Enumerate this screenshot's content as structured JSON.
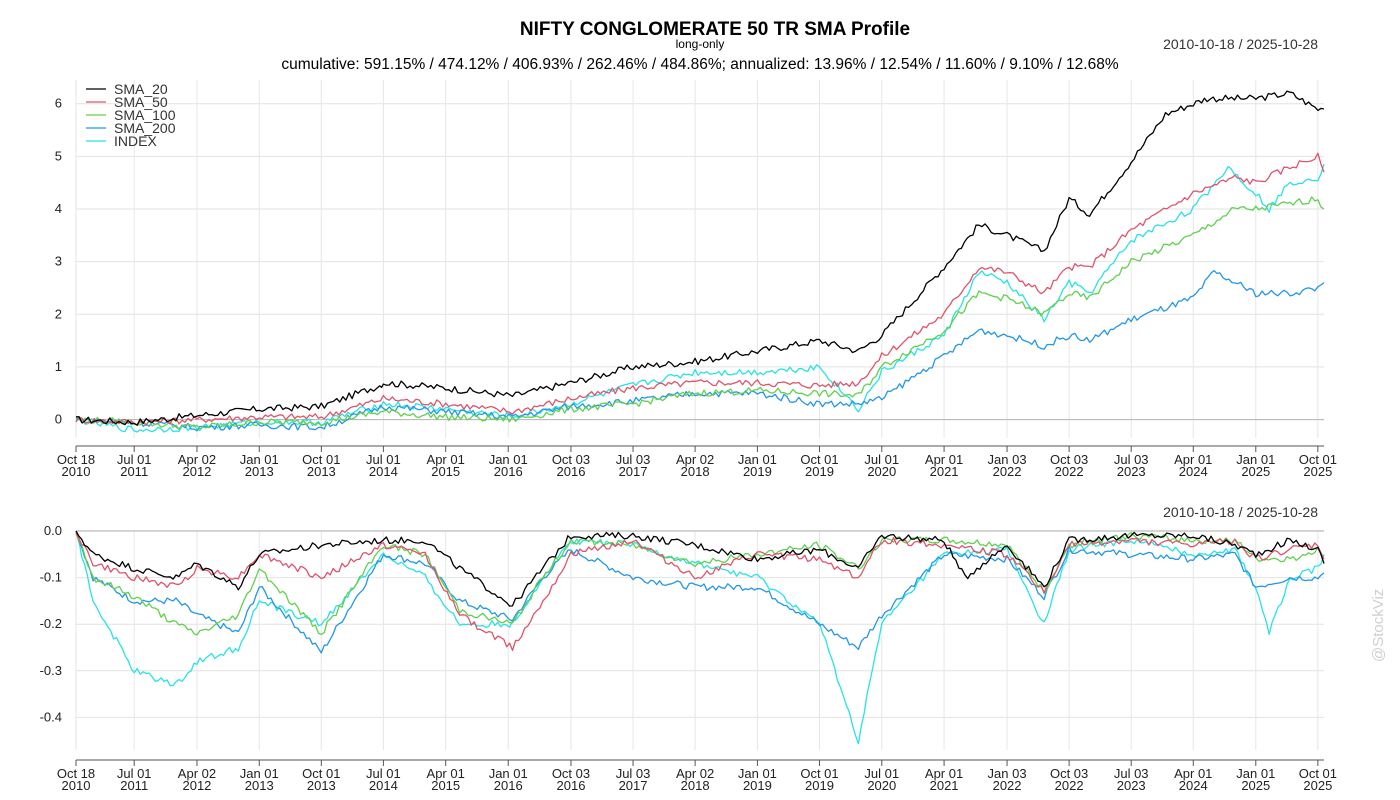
{
  "header": {
    "title": "NIFTY CONGLOMERATE 50 TR SMA Profile",
    "subtitle": "long-only",
    "stats": "cumulative: 591.15% / 474.12% / 406.93% / 262.46% / 484.86%; annualized: 13.96% / 12.54% / 11.60% / 9.10% / 12.68%",
    "date_range": "2010-10-18 / 2025-10-28"
  },
  "watermark": "@StockViz",
  "chart_data": [
    {
      "type": "line",
      "title": "NIFTY CONGLOMERATE 50 TR SMA Profile",
      "subtitle": "long-only",
      "date_range": "2010-10-18 / 2025-10-28",
      "x_ticks": [
        {
          "label": "Oct 18",
          "year": "2010",
          "date": "2010-10-18"
        },
        {
          "label": "Jul 01",
          "year": "2011",
          "date": "2011-07-01"
        },
        {
          "label": "Apr 02",
          "year": "2012",
          "date": "2012-04-02"
        },
        {
          "label": "Jan 01",
          "year": "2013",
          "date": "2013-01-01"
        },
        {
          "label": "Oct 01",
          "year": "2013",
          "date": "2013-10-01"
        },
        {
          "label": "Jul 01",
          "year": "2014",
          "date": "2014-07-01"
        },
        {
          "label": "Apr 01",
          "year": "2015",
          "date": "2015-04-01"
        },
        {
          "label": "Jan 01",
          "year": "2016",
          "date": "2016-01-01"
        },
        {
          "label": "Oct 03",
          "year": "2016",
          "date": "2016-10-03"
        },
        {
          "label": "Jul 03",
          "year": "2017",
          "date": "2017-07-03"
        },
        {
          "label": "Apr 02",
          "year": "2018",
          "date": "2018-04-02"
        },
        {
          "label": "Jan 01",
          "year": "2019",
          "date": "2019-01-01"
        },
        {
          "label": "Oct 01",
          "year": "2019",
          "date": "2019-10-01"
        },
        {
          "label": "Jul 01",
          "year": "2020",
          "date": "2020-07-01"
        },
        {
          "label": "Apr 01",
          "year": "2021",
          "date": "2021-04-01"
        },
        {
          "label": "Jan 03",
          "year": "2022",
          "date": "2022-01-03"
        },
        {
          "label": "Oct 03",
          "year": "2022",
          "date": "2022-10-03"
        },
        {
          "label": "Jul 03",
          "year": "2023",
          "date": "2023-07-03"
        },
        {
          "label": "Apr 01",
          "year": "2024",
          "date": "2024-04-01"
        },
        {
          "label": "Jan 01",
          "year": "2025",
          "date": "2025-01-01"
        },
        {
          "label": "Oct 01",
          "year": "2025",
          "date": "2025-10-01"
        }
      ],
      "y_ticks": [
        "0",
        "1",
        "2",
        "3",
        "4",
        "5",
        "6"
      ],
      "ylim": [
        -0.35,
        6.45
      ],
      "grid": true,
      "legend_position": "top-left",
      "series": [
        {
          "name": "SMA_20",
          "color": "#000000",
          "x": [
            "2010-10-18",
            "2011-07-01",
            "2012-04-02",
            "2013-01-01",
            "2013-10-01",
            "2014-06-15",
            "2014-07-01",
            "2015-04-01",
            "2016-01-20",
            "2016-10-03",
            "2017-07-03",
            "2018-04-02",
            "2019-01-01",
            "2019-10-01",
            "2020-03-20",
            "2020-07-01",
            "2021-04-01",
            "2021-09-01",
            "2022-01-03",
            "2022-06-15",
            "2022-10-03",
            "2023-01-01",
            "2023-07-03",
            "2023-12-01",
            "2024-04-01",
            "2024-06-01",
            "2025-01-01",
            "2025-06-01",
            "2025-10-01",
            "2025-10-28"
          ],
          "y": [
            0,
            -0.05,
            0.08,
            0.2,
            0.25,
            0.65,
            0.7,
            0.6,
            0.45,
            0.7,
            1.0,
            1.1,
            1.3,
            1.5,
            1.3,
            1.6,
            2.9,
            3.7,
            3.5,
            3.2,
            4.2,
            3.9,
            4.9,
            5.8,
            6.0,
            6.1,
            6.1,
            6.2,
            5.9,
            5.9
          ]
        },
        {
          "name": "SMA_50",
          "color": "#df536b",
          "x": [
            "2010-10-18",
            "2011-07-01",
            "2012-04-02",
            "2013-01-01",
            "2013-10-01",
            "2014-07-01",
            "2015-04-01",
            "2016-01-20",
            "2016-10-03",
            "2017-07-03",
            "2018-04-02",
            "2019-01-01",
            "2019-10-01",
            "2020-03-20",
            "2020-07-01",
            "2021-04-01",
            "2021-09-01",
            "2022-01-03",
            "2022-06-15",
            "2022-10-03",
            "2023-01-01",
            "2023-07-03",
            "2024-04-01",
            "2024-10-01",
            "2025-01-01",
            "2025-06-01",
            "2025-10-01",
            "2025-10-28"
          ],
          "y": [
            0,
            -0.05,
            0,
            0.05,
            0.05,
            0.4,
            0.3,
            0.15,
            0.4,
            0.6,
            0.7,
            0.7,
            0.65,
            0.7,
            1.2,
            2.0,
            2.9,
            2.8,
            2.4,
            2.9,
            2.9,
            3.6,
            4.3,
            4.6,
            4.5,
            4.8,
            5.0,
            4.7
          ]
        },
        {
          "name": "SMA_100",
          "color": "#61d04f",
          "x": [
            "2010-10-18",
            "2011-07-01",
            "2012-04-02",
            "2013-01-01",
            "2013-10-01",
            "2014-07-01",
            "2015-04-01",
            "2016-01-20",
            "2016-10-03",
            "2017-07-03",
            "2018-04-02",
            "2019-01-01",
            "2019-10-01",
            "2020-03-20",
            "2020-07-01",
            "2021-04-01",
            "2021-09-01",
            "2022-01-03",
            "2022-06-15",
            "2022-10-03",
            "2023-01-01",
            "2023-07-03",
            "2024-04-01",
            "2024-10-01",
            "2025-01-01",
            "2025-06-01",
            "2025-10-01",
            "2025-10-28"
          ],
          "y": [
            0,
            -0.05,
            -0.15,
            -0.05,
            -0.05,
            0.15,
            0.05,
            0.0,
            0.2,
            0.3,
            0.5,
            0.55,
            0.5,
            0.45,
            1.0,
            1.7,
            2.4,
            2.3,
            2.0,
            2.4,
            2.3,
            3.0,
            3.5,
            4.0,
            4.0,
            4.1,
            4.2,
            4.0
          ]
        },
        {
          "name": "SMA_200",
          "color": "#2297e6",
          "x": [
            "2010-10-18",
            "2011-07-01",
            "2012-04-02",
            "2013-01-01",
            "2013-10-01",
            "2014-07-01",
            "2015-04-01",
            "2016-01-20",
            "2016-10-03",
            "2017-07-03",
            "2018-04-02",
            "2019-01-01",
            "2019-10-01",
            "2020-03-20",
            "2020-07-01",
            "2021-04-01",
            "2021-09-01",
            "2022-01-03",
            "2022-06-15",
            "2022-10-03",
            "2023-01-01",
            "2023-07-03",
            "2024-04-01",
            "2024-07-01",
            "2025-01-01",
            "2025-06-01",
            "2025-10-01",
            "2025-10-28"
          ],
          "y": [
            0,
            -0.05,
            -0.15,
            -0.1,
            -0.15,
            0.25,
            0.15,
            0.05,
            0.25,
            0.35,
            0.5,
            0.5,
            0.3,
            0.3,
            0.4,
            1.2,
            1.7,
            1.6,
            1.4,
            1.6,
            1.5,
            1.9,
            2.3,
            2.8,
            2.4,
            2.4,
            2.5,
            2.6
          ]
        },
        {
          "name": "INDEX",
          "color": "#28e2e5",
          "x": [
            "2010-10-18",
            "2011-07-01",
            "2012-04-02",
            "2013-01-01",
            "2013-10-01",
            "2014-07-01",
            "2015-04-01",
            "2016-01-20",
            "2016-10-03",
            "2017-07-03",
            "2018-04-02",
            "2019-01-01",
            "2019-10-01",
            "2020-03-20",
            "2020-07-01",
            "2021-04-01",
            "2021-09-01",
            "2022-01-03",
            "2022-06-15",
            "2022-10-03",
            "2023-01-01",
            "2023-07-03",
            "2024-04-01",
            "2024-09-01",
            "2025-01-01",
            "2025-03-01",
            "2025-06-01",
            "2025-10-01",
            "2025-10-28"
          ],
          "y": [
            0,
            -0.2,
            -0.15,
            -0.05,
            -0.05,
            0.3,
            0.2,
            0.05,
            0.3,
            0.65,
            0.9,
            0.9,
            1.0,
            0.2,
            0.9,
            1.6,
            2.8,
            2.6,
            1.9,
            2.6,
            2.4,
            3.4,
            4.0,
            4.8,
            4.3,
            4.0,
            4.5,
            4.6,
            4.85
          ]
        }
      ]
    },
    {
      "type": "line",
      "title": "",
      "date_range": "2010-10-18 / 2025-10-28",
      "y_ticks": [
        "0.0",
        "-0.1",
        "-0.2",
        "-0.3",
        "-0.4"
      ],
      "ylim": [
        -0.47,
        0.0
      ],
      "grid": true,
      "series": [
        {
          "name": "SMA_20",
          "color": "#000000",
          "x": [
            "2010-10-18",
            "2011-01-01",
            "2011-07-01",
            "2012-01-01",
            "2012-04-02",
            "2012-10-01",
            "2013-01-01",
            "2013-10-01",
            "2014-07-01",
            "2015-01-01",
            "2015-06-01",
            "2016-01-20",
            "2016-06-01",
            "2016-10-03",
            "2017-07-03",
            "2018-04-02",
            "2019-01-01",
            "2019-10-01",
            "2020-03-20",
            "2020-07-01",
            "2021-04-01",
            "2021-07-01",
            "2022-01-03",
            "2022-06-15",
            "2022-10-03",
            "2023-07-03",
            "2024-04-01",
            "2024-10-01",
            "2025-01-01",
            "2025-06-01",
            "2025-10-01",
            "2025-10-28"
          ],
          "y": [
            0,
            -0.05,
            -0.08,
            -0.1,
            -0.07,
            -0.12,
            -0.05,
            -0.03,
            -0.02,
            -0.02,
            -0.08,
            -0.16,
            -0.08,
            -0.01,
            -0.01,
            -0.03,
            -0.06,
            -0.04,
            -0.08,
            -0.01,
            -0.02,
            -0.1,
            -0.03,
            -0.12,
            -0.02,
            -0.01,
            -0.01,
            -0.03,
            -0.05,
            -0.02,
            -0.04,
            -0.07
          ]
        },
        {
          "name": "SMA_50",
          "color": "#df536b",
          "x": [
            "2010-10-18",
            "2011-01-01",
            "2011-07-01",
            "2012-01-01",
            "2012-04-02",
            "2012-10-01",
            "2013-01-01",
            "2013-10-01",
            "2014-07-01",
            "2015-01-01",
            "2015-06-01",
            "2016-01-20",
            "2016-06-01",
            "2016-10-03",
            "2017-07-03",
            "2018-04-02",
            "2019-01-01",
            "2019-10-01",
            "2020-03-20",
            "2020-07-01",
            "2021-04-01",
            "2022-01-03",
            "2022-06-15",
            "2022-10-03",
            "2023-07-03",
            "2024-04-01",
            "2024-10-01",
            "2025-01-01",
            "2025-06-01",
            "2025-10-01",
            "2025-10-28"
          ],
          "y": [
            0,
            -0.07,
            -0.1,
            -0.12,
            -0.08,
            -0.1,
            -0.05,
            -0.1,
            -0.03,
            -0.05,
            -0.18,
            -0.25,
            -0.15,
            -0.05,
            -0.02,
            -0.1,
            -0.05,
            -0.06,
            -0.1,
            -0.02,
            -0.03,
            -0.05,
            -0.13,
            -0.03,
            -0.02,
            -0.03,
            -0.02,
            -0.06,
            -0.04,
            -0.03,
            -0.06
          ]
        },
        {
          "name": "SMA_100",
          "color": "#61d04f",
          "x": [
            "2010-10-18",
            "2011-01-01",
            "2011-07-01",
            "2012-01-01",
            "2012-04-02",
            "2012-10-01",
            "2013-01-01",
            "2013-10-01",
            "2014-07-01",
            "2015-01-01",
            "2015-06-01",
            "2016-01-20",
            "2016-06-01",
            "2016-10-03",
            "2017-07-03",
            "2018-04-02",
            "2019-01-01",
            "2019-10-01",
            "2020-03-20",
            "2020-07-01",
            "2021-04-01",
            "2022-01-03",
            "2022-06-15",
            "2022-10-03",
            "2023-07-03",
            "2024-04-01",
            "2024-10-01",
            "2025-01-01",
            "2025-06-01",
            "2025-10-01",
            "2025-10-28"
          ],
          "y": [
            0,
            -0.1,
            -0.14,
            -0.2,
            -0.22,
            -0.18,
            -0.08,
            -0.22,
            -0.03,
            -0.05,
            -0.17,
            -0.2,
            -0.1,
            -0.02,
            -0.03,
            -0.07,
            -0.05,
            -0.03,
            -0.08,
            -0.02,
            -0.02,
            -0.03,
            -0.13,
            -0.03,
            -0.01,
            -0.02,
            -0.02,
            -0.06,
            -0.06,
            -0.04,
            -0.07
          ]
        },
        {
          "name": "SMA_200",
          "color": "#2297e6",
          "x": [
            "2010-10-18",
            "2011-01-01",
            "2011-07-01",
            "2012-01-01",
            "2012-04-02",
            "2012-10-01",
            "2013-01-01",
            "2013-10-01",
            "2014-07-01",
            "2015-01-01",
            "2015-06-01",
            "2016-01-20",
            "2016-06-01",
            "2016-10-03",
            "2017-07-03",
            "2018-04-02",
            "2019-01-01",
            "2019-10-01",
            "2020-03-20",
            "2020-07-01",
            "2021-04-01",
            "2022-01-03",
            "2022-06-15",
            "2022-10-03",
            "2023-07-03",
            "2024-04-01",
            "2024-10-01",
            "2025-01-01",
            "2025-06-01",
            "2025-10-01",
            "2025-10-28"
          ],
          "y": [
            0,
            -0.1,
            -0.15,
            -0.15,
            -0.18,
            -0.22,
            -0.12,
            -0.26,
            -0.05,
            -0.07,
            -0.15,
            -0.19,
            -0.1,
            -0.04,
            -0.1,
            -0.12,
            -0.12,
            -0.2,
            -0.25,
            -0.18,
            -0.05,
            -0.06,
            -0.14,
            -0.04,
            -0.05,
            -0.06,
            -0.05,
            -0.12,
            -0.1,
            -0.1,
            -0.09
          ]
        },
        {
          "name": "INDEX",
          "color": "#28e2e5",
          "x": [
            "2010-10-18",
            "2011-01-01",
            "2011-07-01",
            "2012-01-01",
            "2012-04-02",
            "2012-10-01",
            "2013-01-01",
            "2013-10-01",
            "2014-07-01",
            "2015-01-01",
            "2015-06-01",
            "2016-01-20",
            "2016-06-01",
            "2016-10-03",
            "2017-07-03",
            "2018-04-02",
            "2019-01-01",
            "2019-10-01",
            "2020-03-20",
            "2020-07-01",
            "2021-04-01",
            "2022-01-03",
            "2022-06-15",
            "2022-10-03",
            "2023-07-03",
            "2024-04-01",
            "2024-10-01",
            "2025-01-01",
            "2025-03-01",
            "2025-06-01",
            "2025-10-01",
            "2025-10-28"
          ],
          "y": [
            0,
            -0.15,
            -0.3,
            -0.33,
            -0.28,
            -0.25,
            -0.15,
            -0.2,
            -0.05,
            -0.1,
            -0.2,
            -0.2,
            -0.1,
            -0.02,
            -0.03,
            -0.07,
            -0.1,
            -0.2,
            -0.45,
            -0.2,
            -0.05,
            -0.04,
            -0.2,
            -0.04,
            -0.02,
            -0.05,
            -0.04,
            -0.12,
            -0.22,
            -0.1,
            -0.08,
            -0.05
          ]
        }
      ]
    }
  ]
}
